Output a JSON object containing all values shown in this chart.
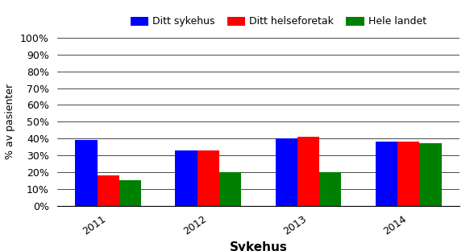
{
  "years": [
    "2011",
    "2012",
    "2013",
    "2014"
  ],
  "ditt_sykehus": [
    39,
    33,
    40,
    38
  ],
  "ditt_helseforetak": [
    18,
    33,
    41,
    38
  ],
  "hele_landet": [
    15,
    20,
    20,
    37
  ],
  "colors": {
    "ditt_sykehus": "#0000FF",
    "ditt_helseforetak": "#FF0000",
    "hele_landet": "#008000"
  },
  "legend_labels": [
    "Ditt sykehus",
    "Ditt helseforetak",
    "Hele landet"
  ],
  "xlabel": "Sykehus",
  "ylabel": "% av pasienter",
  "yticks": [
    0,
    10,
    20,
    30,
    40,
    50,
    60,
    70,
    80,
    90,
    100
  ],
  "ytick_labels": [
    "0%",
    "10%",
    "20%",
    "30%",
    "40%",
    "50%",
    "60%",
    "70%",
    "80%",
    "90%",
    "100%"
  ],
  "ylim": [
    0,
    100
  ],
  "bar_width": 0.22,
  "background_color": "#FFFFFF"
}
